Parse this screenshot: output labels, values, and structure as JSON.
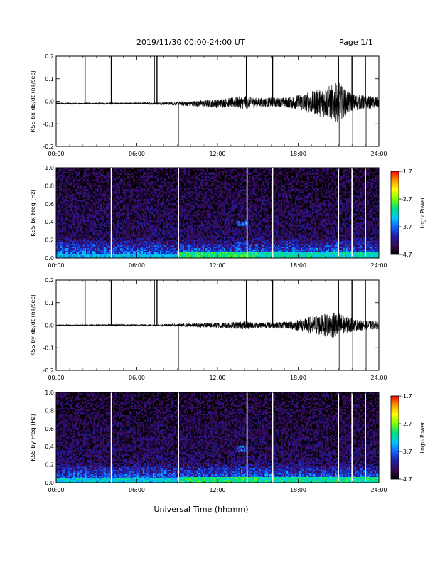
{
  "header": {
    "title": "2019/11/30  00:00-24:00 UT",
    "page": "Page 1/1"
  },
  "footer": {
    "xlabel": "Universal Time (hh:mm)"
  },
  "chart_data": [
    {
      "type": "line",
      "ylabel": "KSS bx dB/dt (nT/sec)",
      "xlim": [
        0,
        24
      ],
      "ylim": [
        -0.2,
        0.2
      ],
      "xticks": [
        "00:00",
        "06:00",
        "12:00",
        "18:00",
        "24:00"
      ],
      "yticks": [
        "-0.2",
        "-0.1",
        "0.0",
        "0.1",
        "0.2"
      ],
      "series": [
        {
          "x_hours": [
            0,
            2,
            4,
            6,
            8,
            9,
            10,
            11,
            12,
            13,
            14,
            15,
            16,
            17,
            18,
            19,
            20,
            20.5,
            21,
            21.5,
            22,
            23,
            24
          ],
          "baseline": [
            -0.01,
            -0.01,
            -0.01,
            -0.01,
            -0.01,
            -0.01,
            -0.01,
            -0.01,
            -0.01,
            -0.005,
            -0.005,
            -0.005,
            -0.005,
            -0.005,
            -0.005,
            -0.005,
            -0.005,
            -0.005,
            -0.005,
            -0.005,
            -0.005,
            -0.005,
            -0.005
          ],
          "amplitude": [
            0.003,
            0.003,
            0.004,
            0.004,
            0.006,
            0.008,
            0.012,
            0.015,
            0.02,
            0.022,
            0.03,
            0.02,
            0.022,
            0.022,
            0.035,
            0.05,
            0.07,
            0.08,
            0.09,
            0.06,
            0.04,
            0.03,
            0.025
          ]
        }
      ],
      "spikes": [
        {
          "t": 2.15,
          "dir": "up"
        },
        {
          "t": 4.1,
          "dir": "up"
        },
        {
          "t": 7.3,
          "dir": "up"
        },
        {
          "t": 7.5,
          "dir": "up"
        },
        {
          "t": 9.1,
          "dir": "down"
        },
        {
          "t": 14.15,
          "dir": "up"
        },
        {
          "t": 14.2,
          "dir": "down"
        },
        {
          "t": 16.1,
          "dir": "up"
        },
        {
          "t": 21.0,
          "dir": "up"
        },
        {
          "t": 21.05,
          "dir": "down"
        },
        {
          "t": 22.0,
          "dir": "up"
        },
        {
          "t": 22.05,
          "dir": "down"
        },
        {
          "t": 23.0,
          "dir": "up"
        },
        {
          "t": 23.05,
          "dir": "down"
        }
      ]
    },
    {
      "type": "heatmap",
      "ylabel": "KSS bx Freq (Hz)",
      "colorbar_label": "Log₁₀ Power",
      "xlim": [
        0,
        24
      ],
      "ylim": [
        0,
        1.0
      ],
      "xticks": [
        "00:00",
        "06:00",
        "12:00",
        "18:00",
        "24:00"
      ],
      "yticks": [
        "0.0",
        "0.2",
        "0.4",
        "0.6",
        "0.8",
        "1.0"
      ],
      "colorbar_ticks": [
        "-1.7",
        "-2.7",
        "-3.7",
        "-4.7"
      ],
      "zlim": [
        -4.7,
        -1.7
      ],
      "gaps_hours": [
        4.1,
        9.1,
        14.2,
        16.1,
        21.0,
        22.0,
        23.0
      ],
      "colormap": [
        "#000000",
        "#3a0a5a",
        "#1e1ea8",
        "#1565ff",
        "#00c8ff",
        "#00e07a",
        "#7dff00",
        "#ffff00",
        "#ff9a00",
        "#ff0000"
      ],
      "background_level": -4.3,
      "low_freq_enhancement": [
        {
          "t0": 0,
          "t1": 9,
          "fmax": 0.05,
          "level": -3.4
        },
        {
          "t0": 9,
          "t1": 15,
          "fmax": 0.06,
          "level": -3.0
        },
        {
          "t0": 15,
          "t1": 24,
          "fmax": 0.06,
          "level": -3.2
        }
      ]
    },
    {
      "type": "line",
      "ylabel": "KSS by dB/dt (nT/sec)",
      "xlim": [
        0,
        24
      ],
      "ylim": [
        -0.2,
        0.2
      ],
      "xticks": [
        "00:00",
        "06:00",
        "12:00",
        "18:00",
        "24:00"
      ],
      "yticks": [
        "-0.2",
        "-0.1",
        "0.0",
        "0.1",
        "0.2"
      ],
      "series": [
        {
          "x_hours": [
            0,
            2,
            4,
            6,
            8,
            9,
            10,
            11,
            12,
            13,
            14,
            15,
            16,
            17,
            18,
            19,
            20,
            20.5,
            21,
            21.5,
            22,
            23,
            24
          ],
          "baseline": [
            0.0,
            0.0,
            0.0,
            0.0,
            0.0,
            0.0,
            0.0,
            0.0,
            0.0,
            0.0,
            0.0,
            0.0,
            0.0,
            0.0,
            0.0,
            0.0,
            0.0,
            0.0,
            0.0,
            0.0,
            0.0,
            0.0,
            0.0
          ],
          "amplitude": [
            0.003,
            0.003,
            0.004,
            0.004,
            0.005,
            0.006,
            0.008,
            0.01,
            0.012,
            0.015,
            0.018,
            0.012,
            0.015,
            0.015,
            0.025,
            0.04,
            0.05,
            0.055,
            0.06,
            0.04,
            0.03,
            0.02,
            0.018
          ]
        }
      ],
      "spikes": [
        {
          "t": 2.15,
          "dir": "up"
        },
        {
          "t": 4.1,
          "dir": "up"
        },
        {
          "t": 7.3,
          "dir": "up"
        },
        {
          "t": 7.5,
          "dir": "up"
        },
        {
          "t": 9.1,
          "dir": "down"
        },
        {
          "t": 14.15,
          "dir": "up"
        },
        {
          "t": 14.2,
          "dir": "down"
        },
        {
          "t": 16.1,
          "dir": "up"
        },
        {
          "t": 21.0,
          "dir": "up"
        },
        {
          "t": 21.05,
          "dir": "down"
        },
        {
          "t": 22.0,
          "dir": "up"
        },
        {
          "t": 22.05,
          "dir": "down"
        },
        {
          "t": 23.0,
          "dir": "up"
        },
        {
          "t": 23.05,
          "dir": "down"
        }
      ]
    },
    {
      "type": "heatmap",
      "ylabel": "KSS by Freq (Hz)",
      "colorbar_label": "Log₁₀ Power",
      "xlim": [
        0,
        24
      ],
      "ylim": [
        0,
        1.0
      ],
      "xticks": [
        "00:00",
        "06:00",
        "12:00",
        "18:00",
        "24:00"
      ],
      "yticks": [
        "0.0",
        "0.2",
        "0.4",
        "0.6",
        "0.8",
        "1.0"
      ],
      "colorbar_ticks": [
        "-1.7",
        "-2.7",
        "-3.7",
        "-4.7"
      ],
      "zlim": [
        -4.7,
        -1.7
      ],
      "gaps_hours": [
        4.1,
        9.1,
        14.2,
        16.1,
        21.0,
        22.0,
        23.0
      ],
      "colormap": [
        "#000000",
        "#3a0a5a",
        "#1e1ea8",
        "#1565ff",
        "#00c8ff",
        "#00e07a",
        "#7dff00",
        "#ffff00",
        "#ff9a00",
        "#ff0000"
      ],
      "background_level": -4.3,
      "low_freq_enhancement": [
        {
          "t0": 0,
          "t1": 9,
          "fmax": 0.05,
          "level": -3.3
        },
        {
          "t0": 9,
          "t1": 15,
          "fmax": 0.06,
          "level": -3.0
        },
        {
          "t0": 15,
          "t1": 24,
          "fmax": 0.06,
          "level": -3.1
        }
      ]
    }
  ]
}
